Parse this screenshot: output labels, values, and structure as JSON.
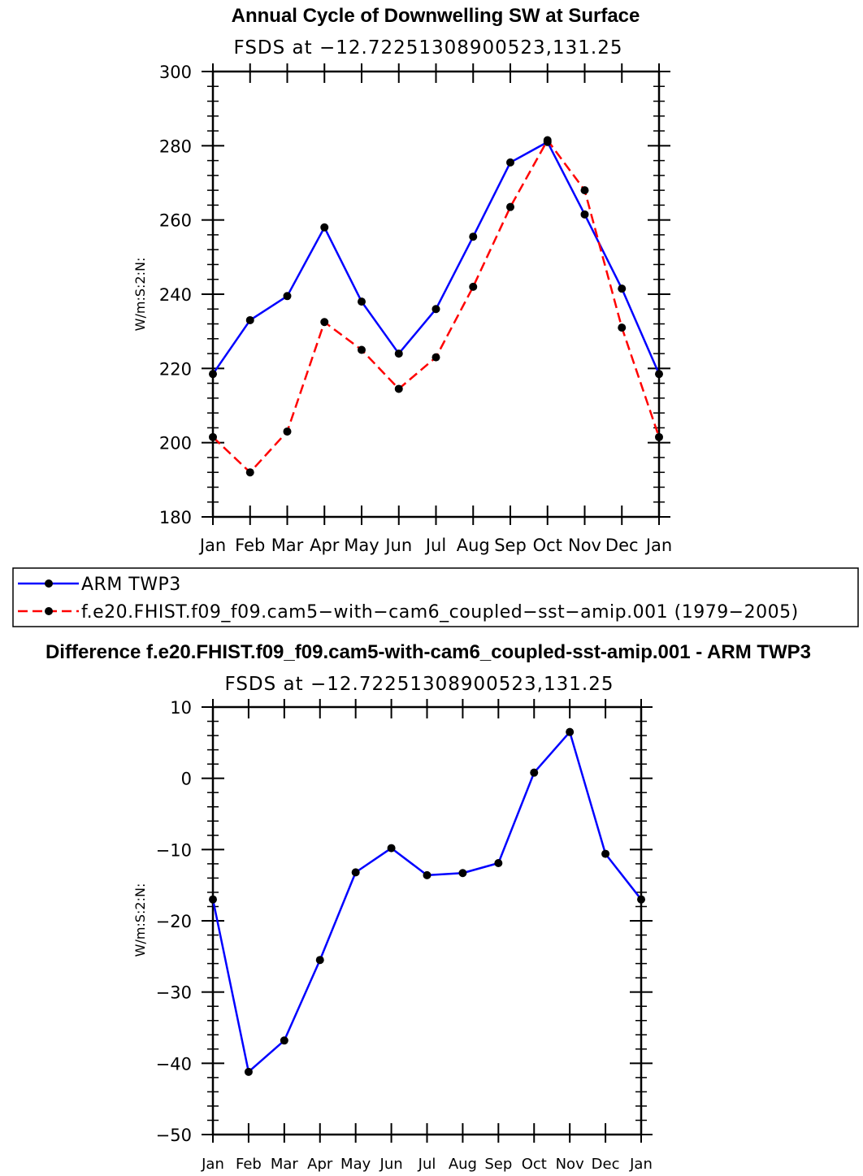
{
  "chart_data": [
    {
      "type": "line",
      "title": "Annual Cycle of Downwelling SW at Surface",
      "subtitle": "FSDS at −12.72251308900523,131.25",
      "ylabel": "W/m:S:2:N:",
      "xlabel": "",
      "categories": [
        "Jan",
        "Feb",
        "Mar",
        "Apr",
        "May",
        "Jun",
        "Jul",
        "Aug",
        "Sep",
        "Oct",
        "Nov",
        "Dec",
        "Jan"
      ],
      "ylim": [
        180,
        300
      ],
      "yticks": [
        180,
        200,
        220,
        240,
        260,
        280,
        300
      ],
      "ytick_labels": [
        "180",
        "200",
        "220",
        "240",
        "260",
        "280",
        "300"
      ],
      "series": [
        {
          "name": "ARM TWP3",
          "color": "#0000ff",
          "style": "solid",
          "values": [
            218.5,
            233,
            239.5,
            258,
            238,
            224,
            236,
            255.5,
            275.5,
            281,
            261.5,
            241.5,
            218.5
          ]
        },
        {
          "name": "f.e20.FHIST.f09_f09.cam5−with−cam6_coupled−sst−amip.001 (1979−2005)",
          "color": "#ff0000",
          "style": "dashed",
          "values": [
            201.5,
            192,
            203,
            232.5,
            225,
            214.5,
            223,
            242,
            263.5,
            281.5,
            268,
            231,
            201.5
          ]
        }
      ],
      "legend": "bottom"
    },
    {
      "type": "line",
      "title": "Difference f.e20.FHIST.f09_f09.cam5-with-cam6_coupled-sst-amip.001 - ARM TWP3",
      "subtitle": "FSDS at −12.72251308900523,131.25",
      "ylabel": "W/m:S:2:N:",
      "xlabel": "",
      "categories": [
        "Jan",
        "Feb",
        "Mar",
        "Apr",
        "May",
        "Jun",
        "Jul",
        "Aug",
        "Sep",
        "Oct",
        "Nov",
        "Dec",
        "Jan"
      ],
      "ylim": [
        -50,
        10
      ],
      "yticks": [
        -50,
        -40,
        -30,
        -20,
        -10,
        0,
        10
      ],
      "ytick_labels": [
        "−50",
        "−40",
        "−30",
        "−20",
        "−10",
        "0",
        "10"
      ],
      "series": [
        {
          "name": "Difference",
          "color": "#0000ff",
          "style": "solid",
          "values": [
            -17,
            -41.2,
            -36.8,
            -25.5,
            -13.2,
            -9.8,
            -13.6,
            -13.3,
            -11.9,
            0.8,
            6.5,
            -10.6,
            -17
          ]
        }
      ]
    }
  ]
}
